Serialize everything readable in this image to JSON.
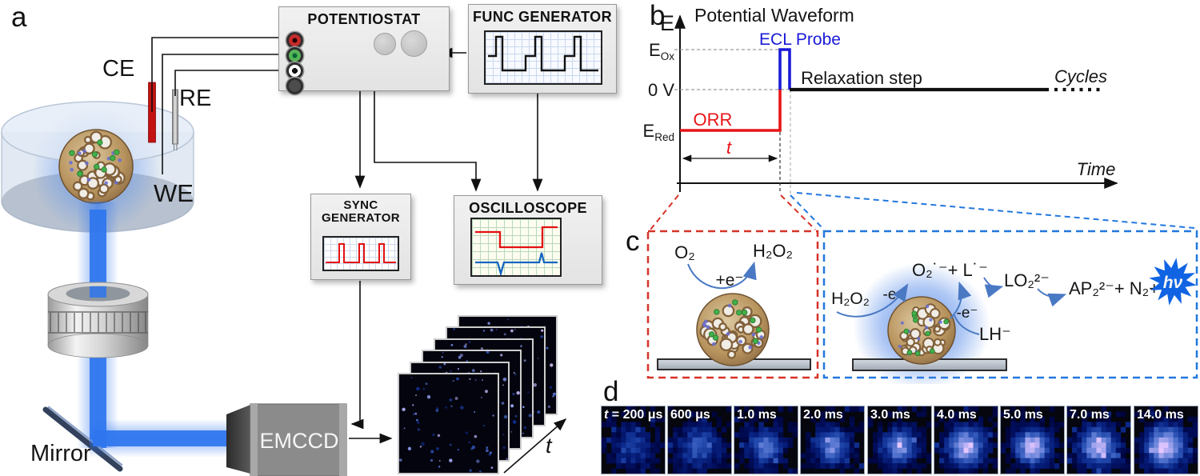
{
  "panel_labels": {
    "a": "a",
    "b": "b",
    "c": "c",
    "d": "d"
  },
  "panel_a": {
    "potentiostat": "POTENTIOSTAT",
    "func_generator": "FUNC GENERATOR",
    "sync_line1": "SYNC",
    "sync_line2": "GENERATOR",
    "oscilloscope": "OSCILLOSCOPE",
    "emccd": "EMCCD",
    "ce": "CE",
    "re": "RE",
    "we": "WE",
    "mirror": "Mirror",
    "stack_t": "t"
  },
  "panel_b": {
    "title": "Potential Waveform",
    "y_axis": "E",
    "x_axis": "Time",
    "e_ox": {
      "base": "E",
      "sub": "Ox"
    },
    "zero": "0 V",
    "e_red": {
      "base": "E",
      "sub": "Red"
    },
    "ecl_probe": "ECL Probe",
    "orr": "ORR",
    "t_label": "t",
    "relaxation": "Relaxation step",
    "cycles": "Cycles"
  },
  "panel_c": {
    "left": {
      "o2": "O₂",
      "h2o2": "H₂O₂",
      "plus_e": "+e⁻"
    },
    "right": {
      "h2o2": "H₂O₂",
      "minus_e1": "-e⁻",
      "radicals": "O₂˙⁻+ L˙⁻",
      "lo2": "LO₂²⁻",
      "ap2": "AP₂²⁻+ N₂+",
      "hv": "hν",
      "minus_e2": "-e⁻",
      "lh": "LH⁻"
    }
  },
  "panel_d": {
    "frames": [
      {
        "t": "t",
        "label": " = 200 μs"
      },
      {
        "label": "600 μs"
      },
      {
        "label": "1.0 ms"
      },
      {
        "label": "2.0 ms"
      },
      {
        "label": "3.0 ms"
      },
      {
        "label": "4.0 ms"
      },
      {
        "label": "5.0 ms"
      },
      {
        "label": "7.0 ms"
      },
      {
        "label": "14.0 ms"
      }
    ]
  },
  "colors": {
    "waveform_red": "#e81417",
    "waveform_blue": "#1a1ad8",
    "relaxation_black": "#111111",
    "ecl_glow_blue": "#3d7ef0",
    "red_dashed_box": "#d63229",
    "blue_dashed_box": "#2277dd"
  }
}
